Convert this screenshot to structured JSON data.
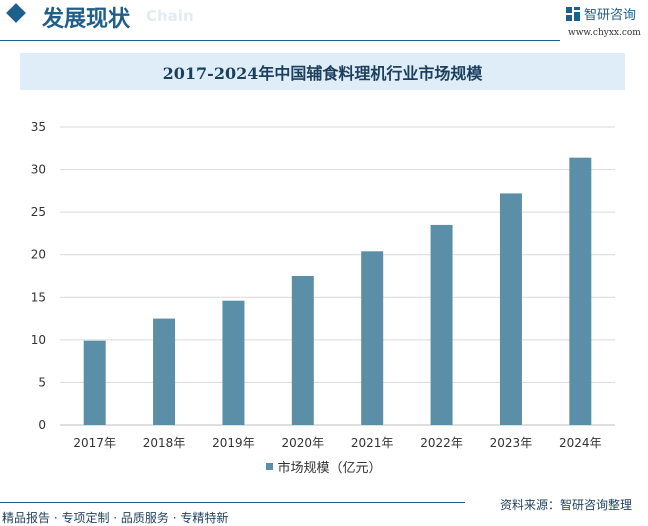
{
  "header": {
    "section_title": "发展现状",
    "section_subtitle": "Chain",
    "logo_text": "智研咨询",
    "website": "www.chyxx.com"
  },
  "chart_data": {
    "type": "bar",
    "title": "2017-2024年中国辅食料理机行业市场规模",
    "categories": [
      "2017年",
      "2018年",
      "2019年",
      "2020年",
      "2021年",
      "2022年",
      "2023年",
      "2024年"
    ],
    "series": [
      {
        "name": "市场规模（亿元）",
        "values": [
          9.9,
          12.5,
          14.6,
          17.5,
          20.4,
          23.5,
          27.2,
          31.4
        ],
        "color": "#5b8fa8"
      }
    ],
    "ylim": [
      0,
      35
    ],
    "yticks": [
      0,
      5,
      10,
      15,
      20,
      25,
      30,
      35
    ],
    "grid": true,
    "legend_position": "bottom"
  },
  "footer": {
    "slogan": "精品报告 · 专项定制 · 品质服务 · 专精特新",
    "source": "资料来源：智研咨询整理"
  }
}
